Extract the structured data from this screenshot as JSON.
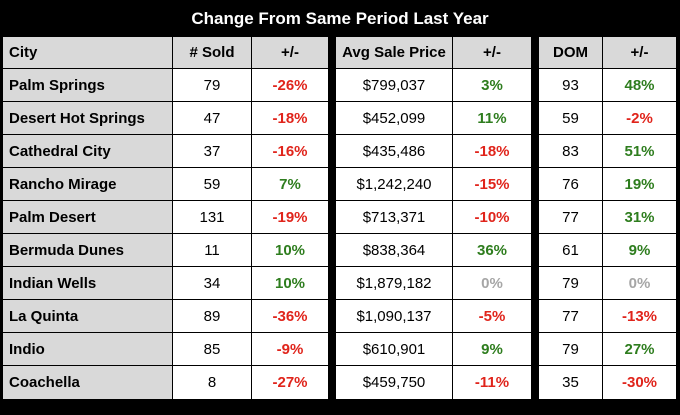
{
  "chart_data": {
    "type": "table",
    "title": "Change From Same Period Last Year",
    "columns": [
      "City",
      "# Sold",
      "+/-",
      "Avg Sale Price",
      "+/-",
      "DOM",
      "+/-"
    ],
    "rows": [
      {
        "city": "Palm Springs",
        "sold": "79",
        "sold_chg": "-26%",
        "price": "$799,037",
        "price_chg": "3%",
        "dom": "93",
        "dom_chg": "48%"
      },
      {
        "city": "Desert Hot Springs",
        "sold": "47",
        "sold_chg": "-18%",
        "price": "$452,099",
        "price_chg": "11%",
        "dom": "59",
        "dom_chg": "-2%"
      },
      {
        "city": "Cathedral City",
        "sold": "37",
        "sold_chg": "-16%",
        "price": "$435,486",
        "price_chg": "-18%",
        "dom": "83",
        "dom_chg": "51%"
      },
      {
        "city": "Rancho Mirage",
        "sold": "59",
        "sold_chg": "7%",
        "price": "$1,242,240",
        "price_chg": "-15%",
        "dom": "76",
        "dom_chg": "19%"
      },
      {
        "city": "Palm Desert",
        "sold": "131",
        "sold_chg": "-19%",
        "price": "$713,371",
        "price_chg": "-10%",
        "dom": "77",
        "dom_chg": "31%"
      },
      {
        "city": "Bermuda Dunes",
        "sold": "11",
        "sold_chg": "10%",
        "price": "$838,364",
        "price_chg": "36%",
        "dom": "61",
        "dom_chg": "9%"
      },
      {
        "city": "Indian Wells",
        "sold": "34",
        "sold_chg": "10%",
        "price": "$1,879,182",
        "price_chg": "0%",
        "dom": "79",
        "dom_chg": "0%"
      },
      {
        "city": "La Quinta",
        "sold": "89",
        "sold_chg": "-36%",
        "price": "$1,090,137",
        "price_chg": "-5%",
        "dom": "77",
        "dom_chg": "-13%"
      },
      {
        "city": "Indio",
        "sold": "85",
        "sold_chg": "-9%",
        "price": "$610,901",
        "price_chg": "9%",
        "dom": "79",
        "dom_chg": "27%"
      },
      {
        "city": "Coachella",
        "sold": "8",
        "sold_chg": "-27%",
        "price": "$459,750",
        "price_chg": "-11%",
        "dom": "35",
        "dom_chg": "-30%"
      }
    ],
    "colors": {
      "positive": "#2e7d1e",
      "negative": "#e0241b",
      "zero": "#a6a6a6",
      "header_bg": "#d9d9d9",
      "background": "#000000"
    }
  }
}
